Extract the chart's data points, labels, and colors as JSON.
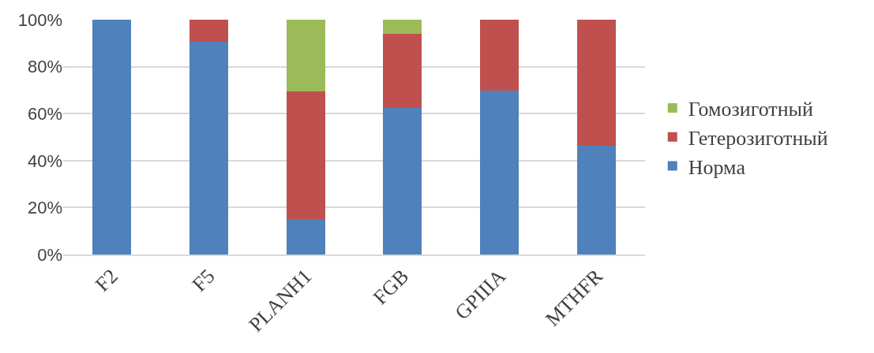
{
  "chart_data": {
    "type": "bar",
    "stacked": true,
    "categories": [
      "F2",
      "F5",
      "PLANH1",
      "FGB",
      "GPIIIA",
      "MTHFR"
    ],
    "series": [
      {
        "name": "Норма",
        "color": "#4f81bd",
        "values": [
          100,
          90.6,
          15.1,
          62.4,
          69.8,
          46.3
        ]
      },
      {
        "name": "Гетерозиготный",
        "color": "#c0504d",
        "values": [
          0,
          9.4,
          54.4,
          31.6,
          30.2,
          53.7
        ]
      },
      {
        "name": "Гомозиготный",
        "color": "#9bbb59",
        "values": [
          0,
          0,
          30.5,
          6,
          0,
          0
        ]
      }
    ],
    "ylim": [
      0,
      100
    ],
    "yticks": [
      {
        "value": 0,
        "label": "0%"
      },
      {
        "value": 20,
        "label": "20%"
      },
      {
        "value": 40,
        "label": "40%"
      },
      {
        "value": 60,
        "label": "60%"
      },
      {
        "value": 80,
        "label": "80%"
      },
      {
        "value": 100,
        "label": "100%"
      }
    ],
    "grid": "y",
    "legend": "right"
  }
}
